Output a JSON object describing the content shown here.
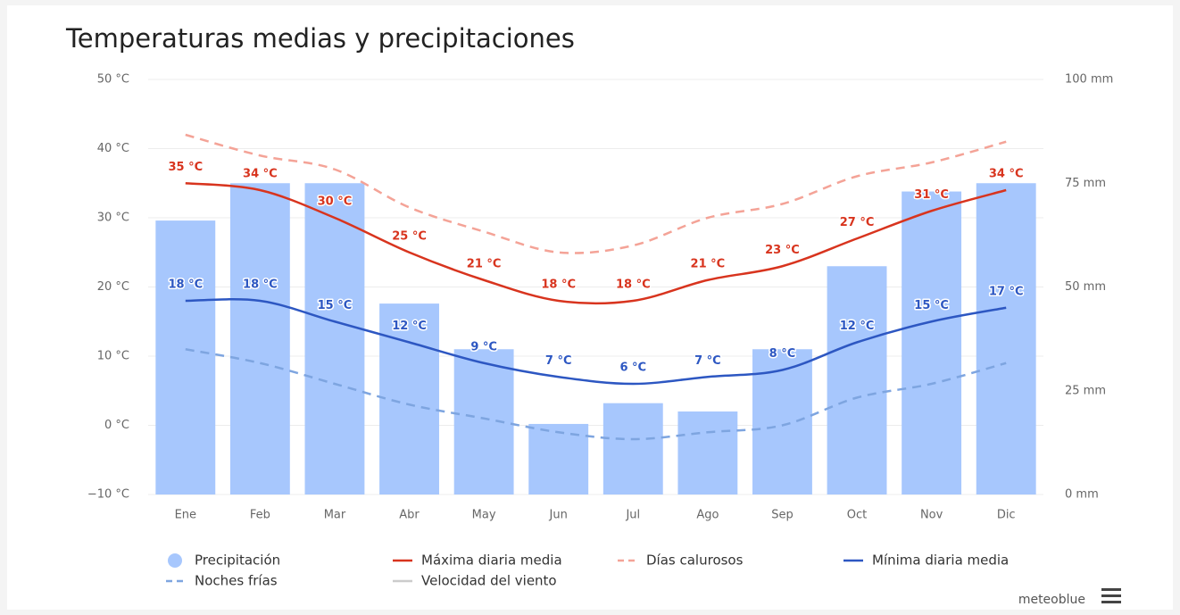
{
  "chart_data": {
    "type": "combo",
    "title": "Temperaturas medias y precipitaciones",
    "categories": [
      "Ene",
      "Feb",
      "Mar",
      "Abr",
      "May",
      "Jun",
      "Jul",
      "Ago",
      "Sep",
      "Oct",
      "Nov",
      "Dic"
    ],
    "ylim": [
      -10,
      50
    ],
    "yticks": [
      {
        "value": -10,
        "label": "−10 °C"
      },
      {
        "value": 0,
        "label": "0 °C"
      },
      {
        "value": 10,
        "label": "10 °C"
      },
      {
        "value": 20,
        "label": "20 °C"
      },
      {
        "value": 30,
        "label": "30 °C"
      },
      {
        "value": 40,
        "label": "40 °C"
      },
      {
        "value": 50,
        "label": "50 °C"
      }
    ],
    "y2lim": [
      0,
      100
    ],
    "y2ticks": [
      {
        "value": 0,
        "label": "0 mm"
      },
      {
        "value": 25,
        "label": "25 mm"
      },
      {
        "value": 50,
        "label": "50 mm"
      },
      {
        "value": 75,
        "label": "75 mm"
      },
      {
        "value": 100,
        "label": "100 mm"
      }
    ],
    "grid": true,
    "series": [
      {
        "name": "Precipitación",
        "type": "bar",
        "axis": "y2",
        "color": "#a7c7fd",
        "values": [
          66,
          75,
          75,
          46,
          35,
          17,
          22,
          20,
          35,
          55,
          73,
          75
        ]
      },
      {
        "name": "Máxima diaria media",
        "type": "line",
        "color": "#d8341e",
        "values": [
          35,
          34,
          30,
          25,
          21,
          18,
          18,
          21,
          23,
          27,
          31,
          34
        ],
        "value_labels": [
          "35 °C",
          "34 °C",
          "30 °C",
          "25 °C",
          "21 °C",
          "18 °C",
          "18 °C",
          "21 °C",
          "23 °C",
          "27 °C",
          "31 °C",
          "34 °C"
        ]
      },
      {
        "name": "Días calurosos",
        "type": "line",
        "dashed": true,
        "color": "#f4a397",
        "values": [
          42,
          39,
          37,
          31.5,
          28,
          25,
          26,
          30,
          32,
          36,
          38,
          41
        ]
      },
      {
        "name": "Mínima diaria media",
        "type": "line",
        "color": "#2d57c2",
        "values": [
          18,
          18,
          15,
          12,
          9,
          7,
          6,
          7,
          8,
          12,
          15,
          17
        ],
        "value_labels": [
          "18 °C",
          "18 °C",
          "15 °C",
          "12 °C",
          "9 °C",
          "7 °C",
          "6 °C",
          "7 °C",
          "8 °C",
          "12 °C",
          "15 °C",
          "17 °C"
        ]
      },
      {
        "name": "Noches frías",
        "type": "line",
        "dashed": true,
        "color": "#7ea5e0",
        "values": [
          11,
          9,
          6,
          3,
          1,
          -1,
          -2,
          -1,
          0,
          4,
          6,
          9
        ]
      },
      {
        "name": "Velocidad del viento",
        "type": "line",
        "color": "#cccccc",
        "visible": false
      }
    ],
    "source": "meteoblue"
  }
}
